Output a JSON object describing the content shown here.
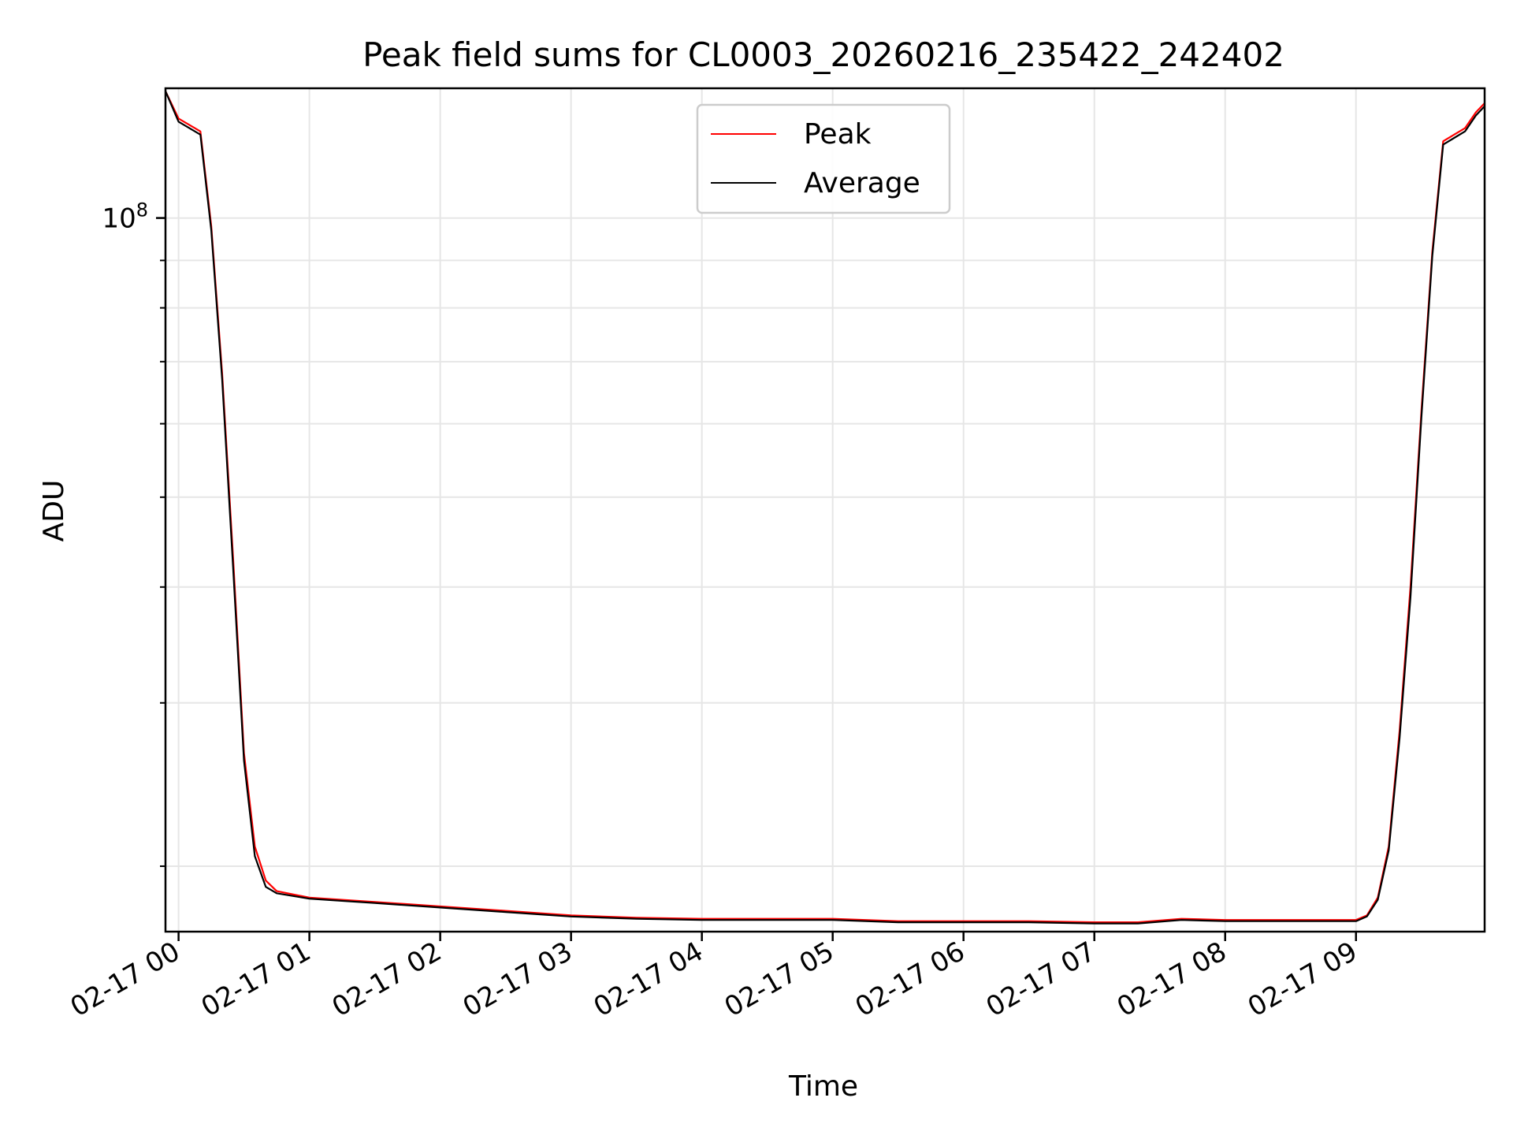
{
  "chart_data": {
    "type": "line",
    "title": "Peak field sums for CL0003_20260216_235422_242402",
    "xlabel": "Time",
    "ylabel": "ADU",
    "y_scale": "log",
    "grid": true,
    "grid_minor": true,
    "legend_position": "upper center",
    "x_range": [
      "02-16 23:54",
      "02-17 09:59"
    ],
    "ylim": [
      17000000,
      138000000
    ],
    "x_tick_labels": [
      "02-17 00",
      "02-17 01",
      "02-17 02",
      "02-17 03",
      "02-17 04",
      "02-17 05",
      "02-17 06",
      "02-17 07",
      "02-17 08",
      "02-17 09"
    ],
    "y_major_tick_labels": [
      {
        "base": "10",
        "exp": "8"
      }
    ],
    "series": [
      {
        "name": "Peak",
        "color": "#ff0000",
        "x": [
          "02-16 23:54",
          "02-17 00:00",
          "02-17 00:10",
          "02-17 00:15",
          "02-17 00:20",
          "02-17 00:25",
          "02-17 00:30",
          "02-17 00:35",
          "02-17 00:40",
          "02-17 00:45",
          "02-17 01:00",
          "02-17 01:30",
          "02-17 02:00",
          "02-17 02:30",
          "02-17 03:00",
          "02-17 03:30",
          "02-17 04:00",
          "02-17 04:30",
          "02-17 05:00",
          "02-17 05:30",
          "02-17 06:00",
          "02-17 06:30",
          "02-17 07:00",
          "02-17 07:20",
          "02-17 07:40",
          "02-17 08:00",
          "02-17 08:30",
          "02-17 09:00",
          "02-17 09:05",
          "02-17 09:10",
          "02-17 09:15",
          "02-17 09:20",
          "02-17 09:25",
          "02-17 09:30",
          "02-17 09:35",
          "02-17 09:40",
          "02-17 09:45",
          "02-17 09:50",
          "02-17 09:55",
          "02-17 09:59"
        ],
        "values": [
          137000000,
          128000000,
          124000000,
          98000000,
          68000000,
          43000000,
          26500000,
          21000000,
          19300000,
          18800000,
          18500000,
          18300000,
          18100000,
          17900000,
          17700000,
          17600000,
          17550000,
          17550000,
          17550000,
          17450000,
          17450000,
          17450000,
          17400000,
          17400000,
          17550000,
          17500000,
          17500000,
          17500000,
          17700000,
          18500000,
          21000000,
          28000000,
          40000000,
          62000000,
          92000000,
          121000000,
          123000000,
          125000000,
          130000000,
          133000000
        ]
      },
      {
        "name": "Average",
        "color": "#000000",
        "x": [
          "02-16 23:54",
          "02-17 00:00",
          "02-17 00:10",
          "02-17 00:15",
          "02-17 00:20",
          "02-17 00:25",
          "02-17 00:30",
          "02-17 00:35",
          "02-17 00:40",
          "02-17 00:45",
          "02-17 01:00",
          "02-17 01:30",
          "02-17 02:00",
          "02-17 02:30",
          "02-17 03:00",
          "02-17 03:30",
          "02-17 04:00",
          "02-17 04:30",
          "02-17 05:00",
          "02-17 05:30",
          "02-17 06:00",
          "02-17 06:30",
          "02-17 07:00",
          "02-17 07:20",
          "02-17 07:40",
          "02-17 08:00",
          "02-17 08:30",
          "02-17 09:00",
          "02-17 09:05",
          "02-17 09:10",
          "02-17 09:15",
          "02-17 09:20",
          "02-17 09:25",
          "02-17 09:30",
          "02-17 09:35",
          "02-17 09:40",
          "02-17 09:45",
          "02-17 09:50",
          "02-17 09:55",
          "02-17 09:59"
        ],
        "values": [
          137000000,
          127000000,
          123000000,
          97000000,
          67000000,
          42000000,
          26000000,
          20500000,
          19000000,
          18700000,
          18450000,
          18250000,
          18050000,
          17850000,
          17650000,
          17550000,
          17500000,
          17500000,
          17500000,
          17400000,
          17400000,
          17400000,
          17350000,
          17350000,
          17500000,
          17450000,
          17450000,
          17450000,
          17650000,
          18400000,
          20800000,
          27500000,
          39000000,
          61000000,
          91000000,
          120000000,
          122000000,
          124000000,
          129000000,
          132000000
        ]
      }
    ]
  }
}
